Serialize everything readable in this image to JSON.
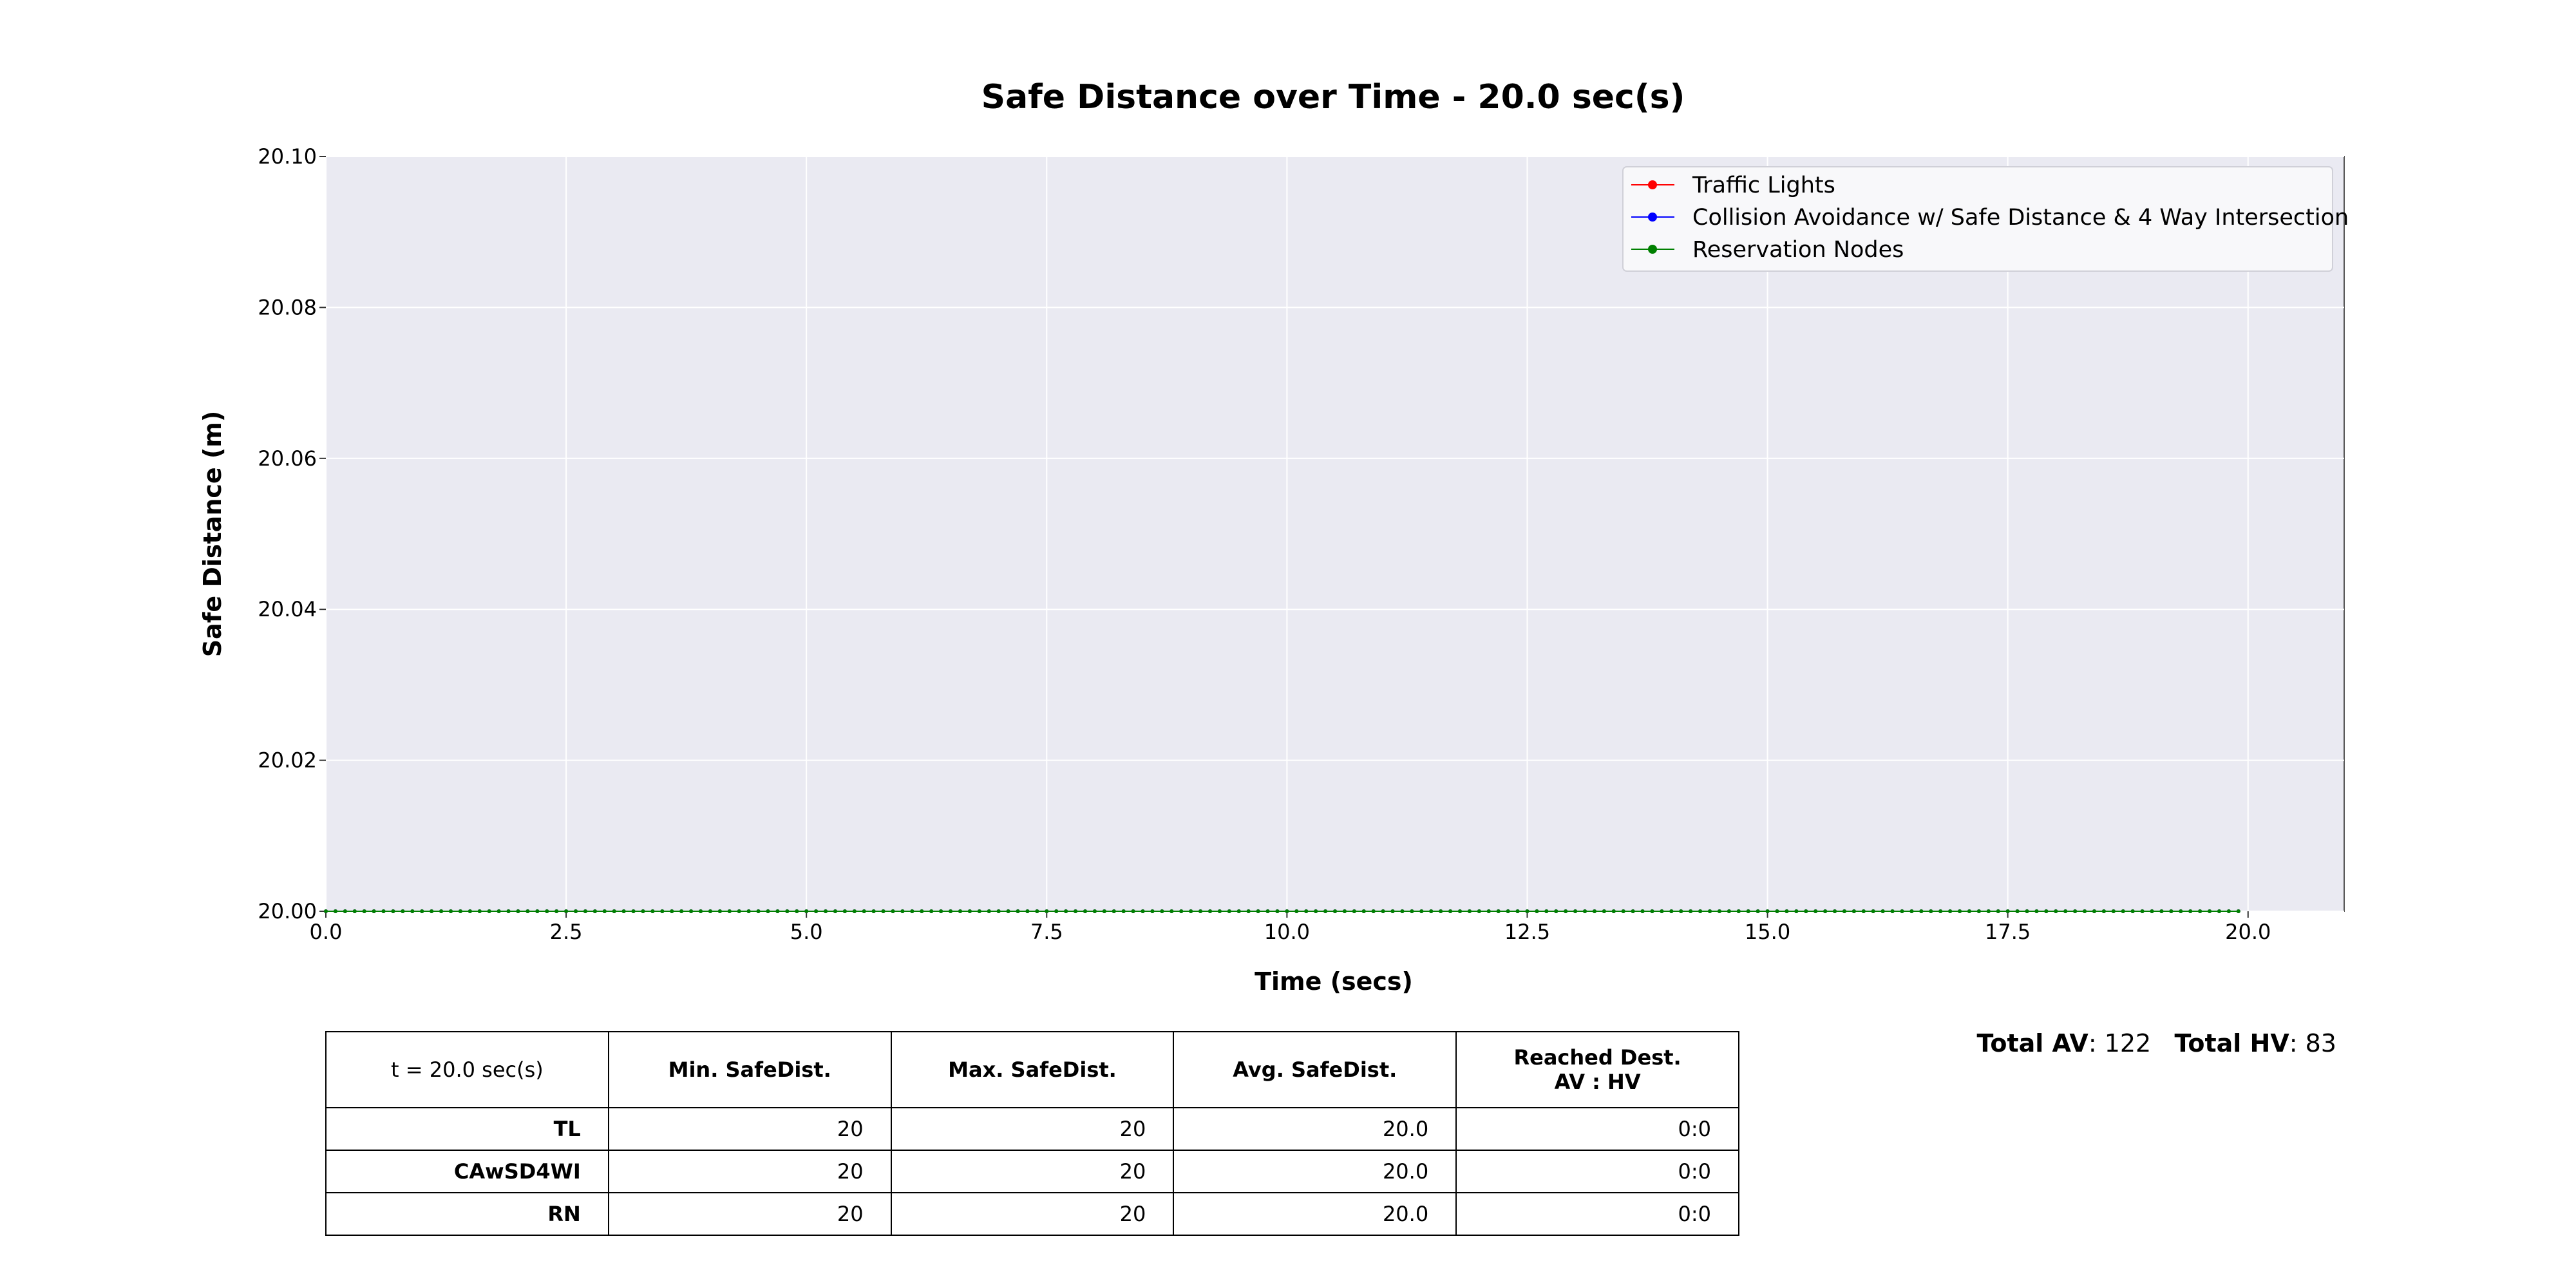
{
  "chart_data": {
    "type": "line",
    "title": "Safe Distance over Time - 20.0 sec(s)",
    "xlabel": "Time (secs)",
    "ylabel": "Safe Distance (m)",
    "xlim": [
      0.0,
      21.0
    ],
    "ylim": [
      20.0,
      20.1
    ],
    "x_ticks": [
      "0.0",
      "2.5",
      "5.0",
      "7.5",
      "10.0",
      "12.5",
      "15.0",
      "17.5",
      "20.0"
    ],
    "y_ticks": [
      "20.00",
      "20.02",
      "20.04",
      "20.06",
      "20.08",
      "20.10"
    ],
    "grid": true,
    "legend_position": "top-right",
    "x_step": 0.1,
    "x_range": [
      0.0,
      19.9
    ],
    "series": [
      {
        "name": "Traffic Lights",
        "color": "#ff0000",
        "y_constant": 20.0
      },
      {
        "name": "Collision Avoidance w/ Safe Distance & 4 Way Intersection",
        "color": "#0000ff",
        "y_constant": 20.0
      },
      {
        "name": "Reservation Nodes",
        "color": "#008000",
        "y_constant": 20.0
      }
    ]
  },
  "table": {
    "header": [
      "t = 20.0 sec(s)",
      "Min. SafeDist.",
      "Max. SafeDist.",
      "Avg. SafeDist."
    ],
    "header_last_line1": "Reached Dest.",
    "header_last_line2": "AV : HV",
    "rows": [
      {
        "label": "TL",
        "min": "20",
        "max": "20",
        "avg": "20.0",
        "reached": "0:0"
      },
      {
        "label": "CAwSD4WI",
        "min": "20",
        "max": "20",
        "avg": "20.0",
        "reached": "0:0"
      },
      {
        "label": "RN",
        "min": "20",
        "max": "20",
        "avg": "20.0",
        "reached": "0:0"
      }
    ]
  },
  "totals": {
    "av_label": "Total AV",
    "av_value": ": 122",
    "hv_label": "Total HV",
    "hv_value": ": 83"
  },
  "colors": {
    "plot_background": "#eaeaf2",
    "grid": "#ffffff"
  }
}
